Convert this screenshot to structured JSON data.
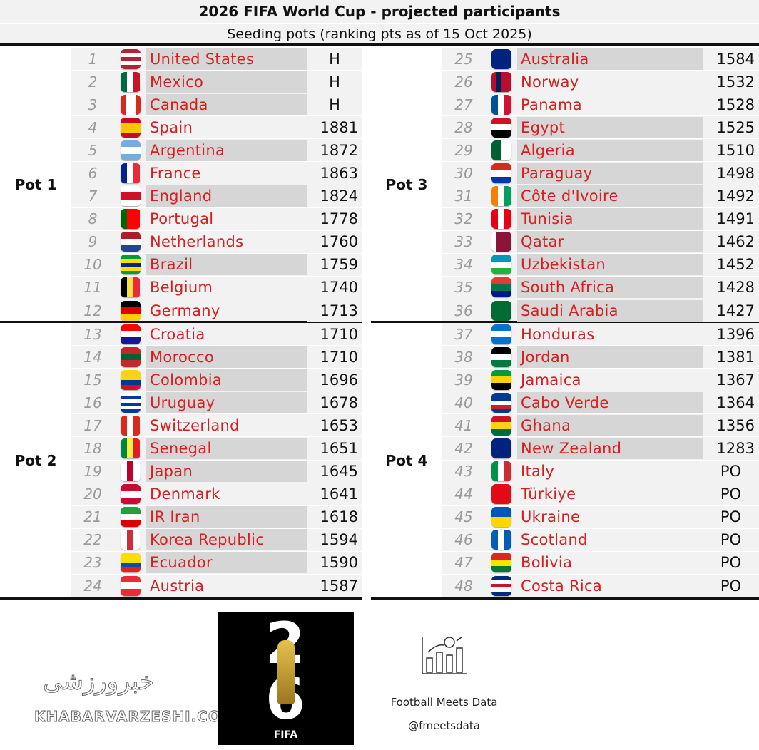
{
  "header": {
    "title": "2026 FIFA World Cup - projected participants",
    "subtitle": "Seeding pots (ranking pts as of 15 Oct 2025)"
  },
  "colors": {
    "country_name": "#d42020",
    "qualified_highlight": "#d6d6d6",
    "background": "#f2f2f2"
  },
  "pots": [
    {
      "label": "Pot 1",
      "teams": [
        {
          "rank": "1",
          "name": "United States",
          "pts": "H",
          "qualified": true,
          "flag": {
            "dir": "column",
            "colors": [
              "#b22234",
              "#ffffff",
              "#b22234",
              "#ffffff",
              "#b22234"
            ]
          }
        },
        {
          "rank": "2",
          "name": "Mexico",
          "pts": "H",
          "qualified": true,
          "flag": {
            "dir": "row",
            "colors": [
              "#006847",
              "#ffffff",
              "#ce1126"
            ]
          }
        },
        {
          "rank": "3",
          "name": "Canada",
          "pts": "H",
          "qualified": true,
          "flag": {
            "dir": "row",
            "colors": [
              "#d52b1e",
              "#ffffff",
              "#ffffff",
              "#d52b1e"
            ]
          }
        },
        {
          "rank": "4",
          "name": "Spain",
          "pts": "1881",
          "qualified": false,
          "flag": {
            "dir": "column",
            "colors": [
              "#c60b1e",
              "#ffc400",
              "#ffc400",
              "#c60b1e"
            ]
          }
        },
        {
          "rank": "5",
          "name": "Argentina",
          "pts": "1872",
          "qualified": true,
          "flag": {
            "dir": "column",
            "colors": [
              "#74acdf",
              "#ffffff",
              "#74acdf"
            ]
          }
        },
        {
          "rank": "6",
          "name": "France",
          "pts": "1863",
          "qualified": false,
          "flag": {
            "dir": "row",
            "colors": [
              "#002395",
              "#ffffff",
              "#ed2939"
            ]
          }
        },
        {
          "rank": "7",
          "name": "England",
          "pts": "1824",
          "qualified": true,
          "flag": {
            "dir": "column",
            "colors": [
              "#ffffff",
              "#ce1124",
              "#ffffff"
            ]
          }
        },
        {
          "rank": "8",
          "name": "Portugal",
          "pts": "1778",
          "qualified": false,
          "flag": {
            "dir": "row",
            "colors": [
              "#006600",
              "#ff0000",
              "#ff0000"
            ]
          }
        },
        {
          "rank": "9",
          "name": "Netherlands",
          "pts": "1760",
          "qualified": false,
          "flag": {
            "dir": "column",
            "colors": [
              "#ae1c28",
              "#ffffff",
              "#21468b"
            ]
          }
        },
        {
          "rank": "10",
          "name": "Brazil",
          "pts": "1759",
          "qualified": true,
          "flag": {
            "dir": "column",
            "colors": [
              "#009c3b",
              "#ffdf00",
              "#002776",
              "#ffdf00",
              "#009c3b"
            ]
          }
        },
        {
          "rank": "11",
          "name": "Belgium",
          "pts": "1740",
          "qualified": false,
          "flag": {
            "dir": "row",
            "colors": [
              "#000000",
              "#fae042",
              "#ed2939"
            ]
          }
        },
        {
          "rank": "12",
          "name": "Germany",
          "pts": "1713",
          "qualified": false,
          "flag": {
            "dir": "column",
            "colors": [
              "#000000",
              "#dd0000",
              "#ffce00"
            ]
          }
        }
      ]
    },
    {
      "label": "Pot 2",
      "teams": [
        {
          "rank": "13",
          "name": "Croatia",
          "pts": "1710",
          "qualified": false,
          "flag": {
            "dir": "column",
            "colors": [
              "#ff0000",
              "#ffffff",
              "#171796"
            ]
          }
        },
        {
          "rank": "14",
          "name": "Morocco",
          "pts": "1710",
          "qualified": true,
          "flag": {
            "dir": "column",
            "colors": [
              "#c1272d",
              "#006233",
              "#c1272d"
            ]
          }
        },
        {
          "rank": "15",
          "name": "Colombia",
          "pts": "1696",
          "qualified": true,
          "flag": {
            "dir": "column",
            "colors": [
              "#fcd116",
              "#fcd116",
              "#003893",
              "#ce1126"
            ]
          }
        },
        {
          "rank": "16",
          "name": "Uruguay",
          "pts": "1678",
          "qualified": true,
          "flag": {
            "dir": "column",
            "colors": [
              "#ffffff",
              "#0038a8",
              "#ffffff",
              "#0038a8",
              "#ffffff",
              "#0038a8"
            ]
          }
        },
        {
          "rank": "17",
          "name": "Switzerland",
          "pts": "1653",
          "qualified": false,
          "flag": {
            "dir": "row",
            "colors": [
              "#da291c",
              "#ffffff",
              "#da291c"
            ]
          }
        },
        {
          "rank": "18",
          "name": "Senegal",
          "pts": "1651",
          "qualified": true,
          "flag": {
            "dir": "row",
            "colors": [
              "#00853f",
              "#fdef42",
              "#e31b23"
            ]
          }
        },
        {
          "rank": "19",
          "name": "Japan",
          "pts": "1645",
          "qualified": true,
          "flag": {
            "dir": "row",
            "colors": [
              "#ffffff",
              "#bc002d",
              "#ffffff"
            ]
          }
        },
        {
          "rank": "20",
          "name": "Denmark",
          "pts": "1641",
          "qualified": false,
          "flag": {
            "dir": "column",
            "colors": [
              "#c60c30",
              "#ffffff",
              "#c60c30"
            ]
          }
        },
        {
          "rank": "21",
          "name": "IR Iran",
          "pts": "1618",
          "qualified": true,
          "flag": {
            "dir": "column",
            "colors": [
              "#239f40",
              "#ffffff",
              "#da0000"
            ]
          }
        },
        {
          "rank": "22",
          "name": "Korea Republic",
          "pts": "1594",
          "qualified": true,
          "flag": {
            "dir": "row",
            "colors": [
              "#ffffff",
              "#cd2e3a",
              "#ffffff"
            ]
          }
        },
        {
          "rank": "23",
          "name": "Ecuador",
          "pts": "1590",
          "qualified": true,
          "flag": {
            "dir": "column",
            "colors": [
              "#ffdd00",
              "#ffdd00",
              "#034ea2",
              "#ed1c24"
            ]
          }
        },
        {
          "rank": "24",
          "name": "Austria",
          "pts": "1587",
          "qualified": false,
          "flag": {
            "dir": "column",
            "colors": [
              "#ed2939",
              "#ffffff",
              "#ed2939"
            ]
          }
        }
      ]
    },
    {
      "label": "Pot 3",
      "teams": [
        {
          "rank": "25",
          "name": "Australia",
          "pts": "1584",
          "qualified": true,
          "flag": {
            "dir": "column",
            "colors": [
              "#00247d",
              "#00247d"
            ]
          }
        },
        {
          "rank": "26",
          "name": "Norway",
          "pts": "1532",
          "qualified": false,
          "flag": {
            "dir": "row",
            "colors": [
              "#ba0c2f",
              "#00205b",
              "#ba0c2f",
              "#ba0c2f"
            ]
          }
        },
        {
          "rank": "27",
          "name": "Panama",
          "pts": "1528",
          "qualified": false,
          "flag": {
            "dir": "row",
            "colors": [
              "#005293",
              "#ffffff",
              "#d21034"
            ]
          }
        },
        {
          "rank": "28",
          "name": "Egypt",
          "pts": "1525",
          "qualified": true,
          "flag": {
            "dir": "column",
            "colors": [
              "#ce1126",
              "#ffffff",
              "#000000"
            ]
          }
        },
        {
          "rank": "29",
          "name": "Algeria",
          "pts": "1510",
          "qualified": true,
          "flag": {
            "dir": "row",
            "colors": [
              "#006233",
              "#ffffff"
            ]
          }
        },
        {
          "rank": "30",
          "name": "Paraguay",
          "pts": "1498",
          "qualified": true,
          "flag": {
            "dir": "column",
            "colors": [
              "#d52b1e",
              "#ffffff",
              "#0038a8"
            ]
          }
        },
        {
          "rank": "31",
          "name": "Côte d'Ivoire",
          "pts": "1492",
          "qualified": true,
          "flag": {
            "dir": "row",
            "colors": [
              "#f77f00",
              "#ffffff",
              "#009e60"
            ]
          }
        },
        {
          "rank": "32",
          "name": "Tunisia",
          "pts": "1491",
          "qualified": true,
          "flag": {
            "dir": "row",
            "colors": [
              "#e70013",
              "#ffffff",
              "#e70013"
            ]
          }
        },
        {
          "rank": "33",
          "name": "Qatar",
          "pts": "1462",
          "qualified": true,
          "flag": {
            "dir": "row",
            "colors": [
              "#ffffff",
              "#8a1538",
              "#8a1538",
              "#8a1538"
            ]
          }
        },
        {
          "rank": "34",
          "name": "Uzbekistan",
          "pts": "1452",
          "qualified": true,
          "flag": {
            "dir": "column",
            "colors": [
              "#0099b5",
              "#ffffff",
              "#1eb53a"
            ]
          }
        },
        {
          "rank": "35",
          "name": "South Africa",
          "pts": "1428",
          "qualified": true,
          "flag": {
            "dir": "column",
            "colors": [
              "#e03c31",
              "#007749",
              "#001489"
            ]
          }
        },
        {
          "rank": "36",
          "name": "Saudi Arabia",
          "pts": "1427",
          "qualified": true,
          "flag": {
            "dir": "column",
            "colors": [
              "#006c35",
              "#006c35"
            ]
          }
        }
      ]
    },
    {
      "label": "Pot 4",
      "teams": [
        {
          "rank": "37",
          "name": "Honduras",
          "pts": "1396",
          "qualified": false,
          "flag": {
            "dir": "column",
            "colors": [
              "#0073cf",
              "#ffffff",
              "#0073cf"
            ]
          }
        },
        {
          "rank": "38",
          "name": "Jordan",
          "pts": "1381",
          "qualified": true,
          "flag": {
            "dir": "column",
            "colors": [
              "#000000",
              "#ffffff",
              "#007a3d"
            ]
          }
        },
        {
          "rank": "39",
          "name": "Jamaica",
          "pts": "1367",
          "qualified": false,
          "flag": {
            "dir": "column",
            "colors": [
              "#009b3a",
              "#fed100",
              "#000000"
            ]
          }
        },
        {
          "rank": "40",
          "name": "Cabo Verde",
          "pts": "1364",
          "qualified": true,
          "flag": {
            "dir": "column",
            "colors": [
              "#003893",
              "#003893",
              "#ffffff",
              "#cf2027",
              "#003893"
            ]
          }
        },
        {
          "rank": "41",
          "name": "Ghana",
          "pts": "1356",
          "qualified": true,
          "flag": {
            "dir": "column",
            "colors": [
              "#ce1126",
              "#fcd116",
              "#006b3f"
            ]
          }
        },
        {
          "rank": "42",
          "name": "New Zealand",
          "pts": "1283",
          "qualified": true,
          "flag": {
            "dir": "column",
            "colors": [
              "#00247d",
              "#00247d"
            ]
          }
        },
        {
          "rank": "43",
          "name": "Italy",
          "pts": "PO",
          "qualified": false,
          "flag": {
            "dir": "row",
            "colors": [
              "#009246",
              "#ffffff",
              "#ce2b37"
            ]
          }
        },
        {
          "rank": "44",
          "name": "Türkiye",
          "pts": "PO",
          "qualified": false,
          "flag": {
            "dir": "row",
            "colors": [
              "#e30a17",
              "#e30a17"
            ]
          }
        },
        {
          "rank": "45",
          "name": "Ukraine",
          "pts": "PO",
          "qualified": false,
          "flag": {
            "dir": "column",
            "colors": [
              "#0057b7",
              "#ffd700"
            ]
          }
        },
        {
          "rank": "46",
          "name": "Scotland",
          "pts": "PO",
          "qualified": false,
          "flag": {
            "dir": "row",
            "colors": [
              "#005eb8",
              "#ffffff",
              "#005eb8"
            ]
          }
        },
        {
          "rank": "47",
          "name": "Bolivia",
          "pts": "PO",
          "qualified": false,
          "flag": {
            "dir": "column",
            "colors": [
              "#d52b1e",
              "#f9e300",
              "#007934"
            ]
          }
        },
        {
          "rank": "48",
          "name": "Costa Rica",
          "pts": "PO",
          "qualified": false,
          "flag": {
            "dir": "column",
            "colors": [
              "#002b7f",
              "#ffffff",
              "#ce1126",
              "#ffffff",
              "#002b7f"
            ]
          }
        }
      ]
    }
  ],
  "footer": {
    "logo_text": "FIFA",
    "logo_numerals": [
      "2",
      "6"
    ],
    "credit_name": "Football Meets Data",
    "credit_handle": "@fmeetsdata",
    "watermark": "KHABARVARZESHI.COM",
    "watermark_fa": "خبرورزشی"
  }
}
